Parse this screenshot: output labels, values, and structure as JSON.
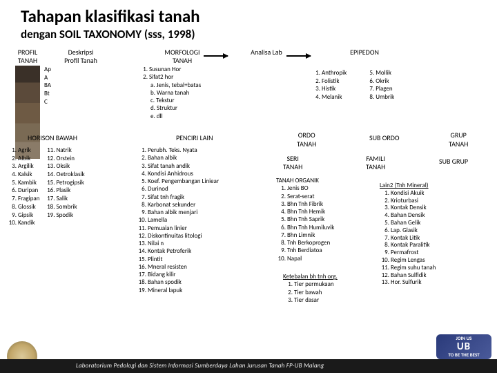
{
  "title": "Tahapan klasifikasi tanah",
  "subtitle": "dengan SOIL TAXONOMY (sss, 1998)",
  "headers": {
    "profil": "PROFIL\nTANAH",
    "deskripsi": "Deskripsi\nProfil Tanah",
    "morfologi": "MORFOLOGI\nTANAH",
    "analisa": "Analisa Lab",
    "epipedon": "EPIPEDON",
    "horison_bawah": "HORISON BAWAH",
    "penciri_lain": "PENCIRI LAIN",
    "ordo": "ORDO\nTANAH",
    "subordo": "SUB ORDO",
    "grup": "GRUP\nTANAH",
    "seri": "SERI\nTANAH",
    "famili": "FAMILI\nTANAH",
    "subgrup": "SUB GRUP"
  },
  "horizons": [
    "Ap",
    "A",
    "BA",
    "Bt",
    "C"
  ],
  "morf": {
    "m1": "Susunan Hor",
    "m2": "Sifat2 hor",
    "a": "Jenis, tebal+batas",
    "b": "Warna tanah",
    "c": "Tekstur",
    "d": "Struktur",
    "e": "dll"
  },
  "epi_left": [
    "Anthropik",
    "Folistik",
    "Histik",
    "Melanik"
  ],
  "epi_right": [
    "Mollik",
    "Okrik",
    "Plagen",
    "Umbrik"
  ],
  "horison_left": [
    "Agrik",
    "Albik",
    "Argilik",
    "Kalsik",
    "Kambik",
    "Duripan",
    "Fragipan",
    "Glossik",
    "Gipsik",
    "Kandik"
  ],
  "horison_right": [
    "Natrik",
    "Orstein",
    "Oksik",
    "Oetroklasik",
    "Petrogipsik",
    "Plasik",
    "Salik",
    "Sombrik",
    "Spodik"
  ],
  "penciri": [
    "Perubh. Teks. Nyata",
    "Bahan albik",
    "Sifat tanah andik",
    "Kondisi Anhidrous",
    "Koef. Pengembangan Liniear",
    "Durinod",
    "Sifat tnh fragik",
    "Karbonat sekunder",
    "Bahan albik menjari",
    "Lamella",
    "Pemuaian linier",
    "Diskontinuitas litologi",
    "Nilai n",
    "Kontak Petroferik",
    "Plintit",
    "Mneral resisten",
    "Bidang kilir",
    "Bahan spodik",
    "Mineral lapuk"
  ],
  "organik_hdr": "TANAH ORGANIK",
  "organik": [
    "Jenis BO",
    "Serat-serat",
    "Bhn Tnh Fibrik",
    "Bhn Tnh Hemik",
    "Bhn Tnh Saprik",
    "Bhn Tnh Humiluvik",
    "Bhn Limnik",
    "Tnh Berkoprogen",
    "Tnh Berdiatoa",
    "Napal"
  ],
  "mineral_hdr": "Lain2 (Tnh Mineral)",
  "mineral": [
    "Kondisi Akuik",
    "Krioturbasi",
    "Kontak Densik",
    "Bahan Densik",
    "Bahan Gelik",
    "Lap. Glasik",
    "Kontak Litik",
    "Kontak Paralitik",
    "Permafrost",
    "Regim Lengas",
    "Regim suhu tanah",
    "Bahan Sulfidik",
    "Hor. Sulfurik"
  ],
  "ketebalan_hdr": "Ketebalan bh tnh org.",
  "ketebalan": [
    "Tier permukaan",
    "Tier bawah",
    "Tier dasar"
  ],
  "footer": "Laboratorium Pedologi dan Sistem Informasi Sumberdaya Lahan Jurusan Tanah  FP-UB  Malang",
  "badge": {
    "t1": "JOIN US",
    "t2": "UB",
    "t3": "TO BE THE BEST"
  }
}
